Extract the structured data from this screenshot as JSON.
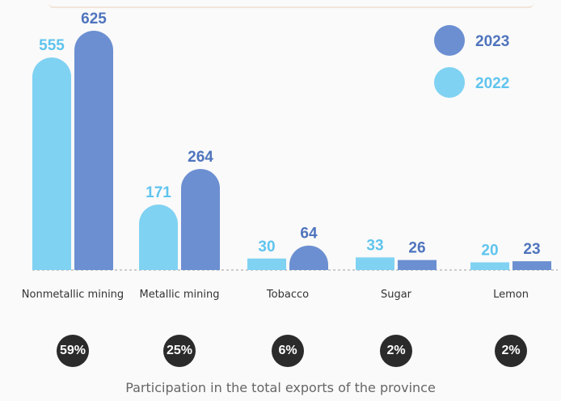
{
  "chart_data": {
    "type": "bar",
    "categories": [
      "Nonmetallic mining",
      "Metallic mining",
      "Tobacco",
      "Sugar",
      "Lemon"
    ],
    "series": [
      {
        "name": "2022",
        "values": [
          555,
          171,
          30,
          33,
          20
        ],
        "color": "#7fd2f2"
      },
      {
        "name": "2023",
        "values": [
          625,
          264,
          64,
          26,
          23
        ],
        "color": "#6b8fd1"
      }
    ],
    "legend": {
      "placement": "top-right",
      "order": [
        "2023",
        "2022"
      ]
    },
    "label_colors": {
      "2022": "#5fc4ee",
      "2023": "#4f74bd"
    },
    "grid": false,
    "shares": [
      "59%",
      "25%",
      "6%",
      "2%",
      "2%"
    ],
    "share_color": "#2b2b2b",
    "footnote": "Participation in the total exports of the province"
  }
}
